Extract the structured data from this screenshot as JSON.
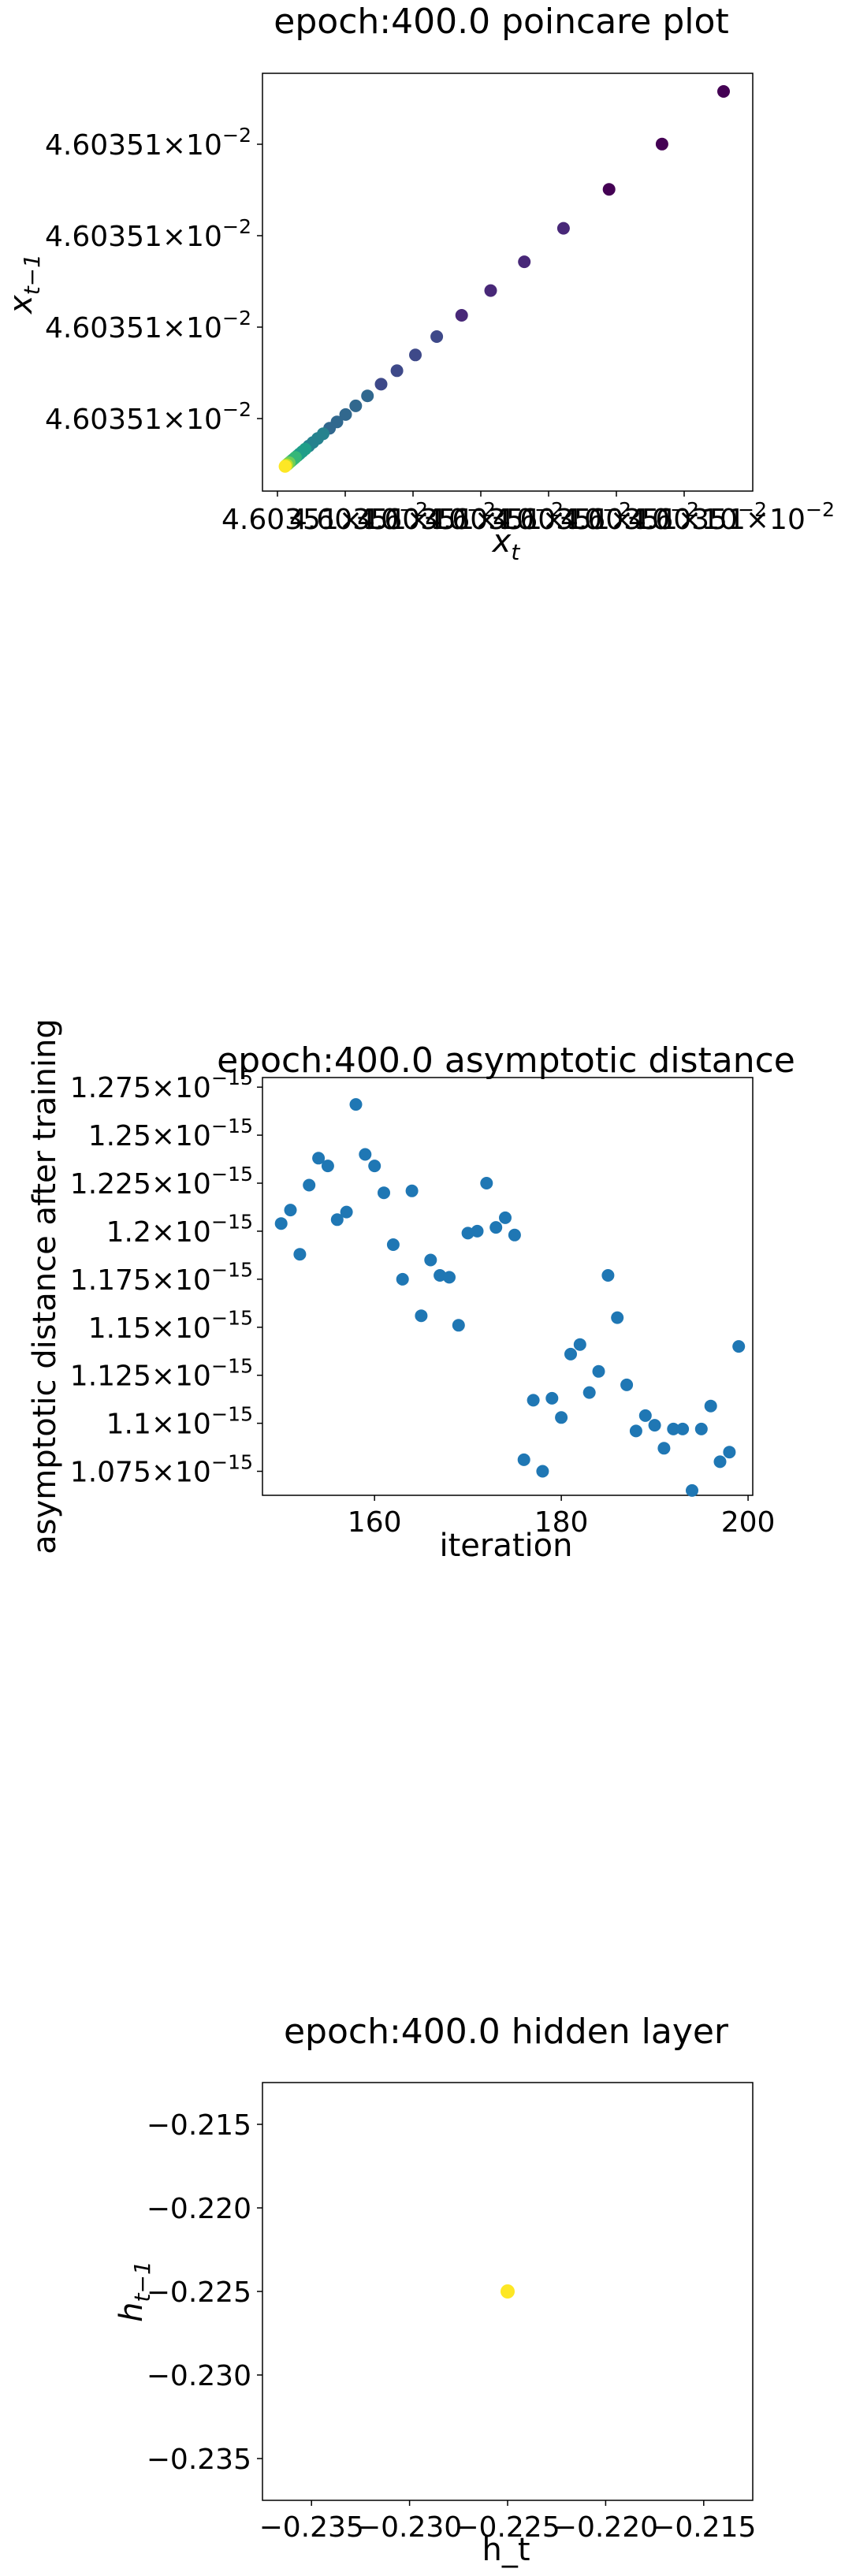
{
  "chart_data": [
    {
      "id": "poincare",
      "type": "scatter",
      "title": "epoch:400.0 poincare plot",
      "xlabel": "x_t",
      "ylabel": "x_{t−1}",
      "x_tick_labels": [
        "4.60351×10^{−2}",
        "4.60351×10^{−2}",
        "4.60351×10^{−2}",
        "4.60351×10^{−2}",
        "4.60351×10^{−2}",
        "4.60351×10^{−2}",
        "4.60351×10^{−2}"
      ],
      "y_tick_labels": [
        "4.60351×10^{−2}",
        "4.60351×10^{−2}",
        "4.60351×10^{−2}",
        "4.60351×10^{−2}"
      ],
      "colormap": "viridis",
      "point_count": 40,
      "description_note": "points lie on the diagonal, converging toward a fixed point; colour runs from dark purple (early) to yellow (late)"
    },
    {
      "id": "asymptotic",
      "type": "scatter",
      "title": "epoch:400.0 asymptotic distance",
      "xlabel": "iteration",
      "ylabel": "asymptotic distance after training",
      "xlim": [
        148,
        200.5
      ],
      "ylim": [
        1.0625e-15,
        1.28e-15
      ],
      "x_ticks": [
        160,
        180,
        200
      ],
      "y_ticks": [
        1.075e-15,
        1.1e-15,
        1.125e-15,
        1.15e-15,
        1.175e-15,
        1.2e-15,
        1.225e-15,
        1.25e-15,
        1.275e-15
      ],
      "y_tick_labels": [
        "1.075×10^{−15}",
        "1.1×10^{−15}",
        "1.125×10^{−15}",
        "1.15×10^{−15}",
        "1.175×10^{−15}",
        "1.2×10^{−15}",
        "1.225×10^{−15}",
        "1.25×10^{−15}",
        "1.275×10^{−15}"
      ],
      "color": "#1f77b4",
      "x": [
        150,
        151,
        152,
        153,
        154,
        155,
        156,
        157,
        158,
        159,
        160,
        161,
        162,
        163,
        164,
        165,
        166,
        167,
        168,
        169,
        170,
        171,
        172,
        173,
        174,
        175,
        176,
        177,
        178,
        179,
        180,
        181,
        182,
        183,
        184,
        185,
        186,
        187,
        188,
        189,
        190,
        191,
        192,
        193,
        194,
        195,
        196,
        197,
        198,
        199
      ],
      "y": [
        1.204e-15,
        1.211e-15,
        1.188e-15,
        1.224e-15,
        1.238e-15,
        1.234e-15,
        1.206e-15,
        1.21e-15,
        1.266e-15,
        1.24e-15,
        1.234e-15,
        1.22e-15,
        1.193e-15,
        1.175e-15,
        1.221e-15,
        1.156e-15,
        1.185e-15,
        1.177e-15,
        1.176e-15,
        1.151e-15,
        1.199e-15,
        1.2e-15,
        1.225e-15,
        1.202e-15,
        1.207e-15,
        1.198e-15,
        1.081e-15,
        1.112e-15,
        1.075e-15,
        1.113e-15,
        1.103e-15,
        1.136e-15,
        1.141e-15,
        1.116e-15,
        1.127e-15,
        1.177e-15,
        1.155e-15,
        1.12e-15,
        1.096e-15,
        1.104e-15,
        1.099e-15,
        1.087e-15,
        1.097e-15,
        1.097e-15,
        1.065e-15,
        1.097e-15,
        1.109e-15,
        1.08e-15,
        1.085e-15,
        1.14e-15
      ]
    },
    {
      "id": "hidden",
      "type": "scatter",
      "title": "epoch:400.0 hidden layer",
      "xlabel": "h_t",
      "ylabel": "h_{t−1}",
      "xlim": [
        -0.2375,
        -0.2125
      ],
      "ylim": [
        -0.2375,
        -0.2125
      ],
      "x_ticks": [
        -0.235,
        -0.23,
        -0.225,
        -0.22,
        -0.215
      ],
      "y_ticks": [
        -0.215,
        -0.22,
        -0.225,
        -0.23,
        -0.235
      ],
      "x_tick_labels": [
        "−0.235",
        "−0.230",
        "−0.225",
        "−0.220",
        "−0.215"
      ],
      "y_tick_labels": [
        "−0.215",
        "−0.220",
        "−0.225",
        "−0.230",
        "−0.235"
      ],
      "color": "#fde725",
      "x": [
        -0.225
      ],
      "y": [
        -0.225
      ]
    }
  ]
}
